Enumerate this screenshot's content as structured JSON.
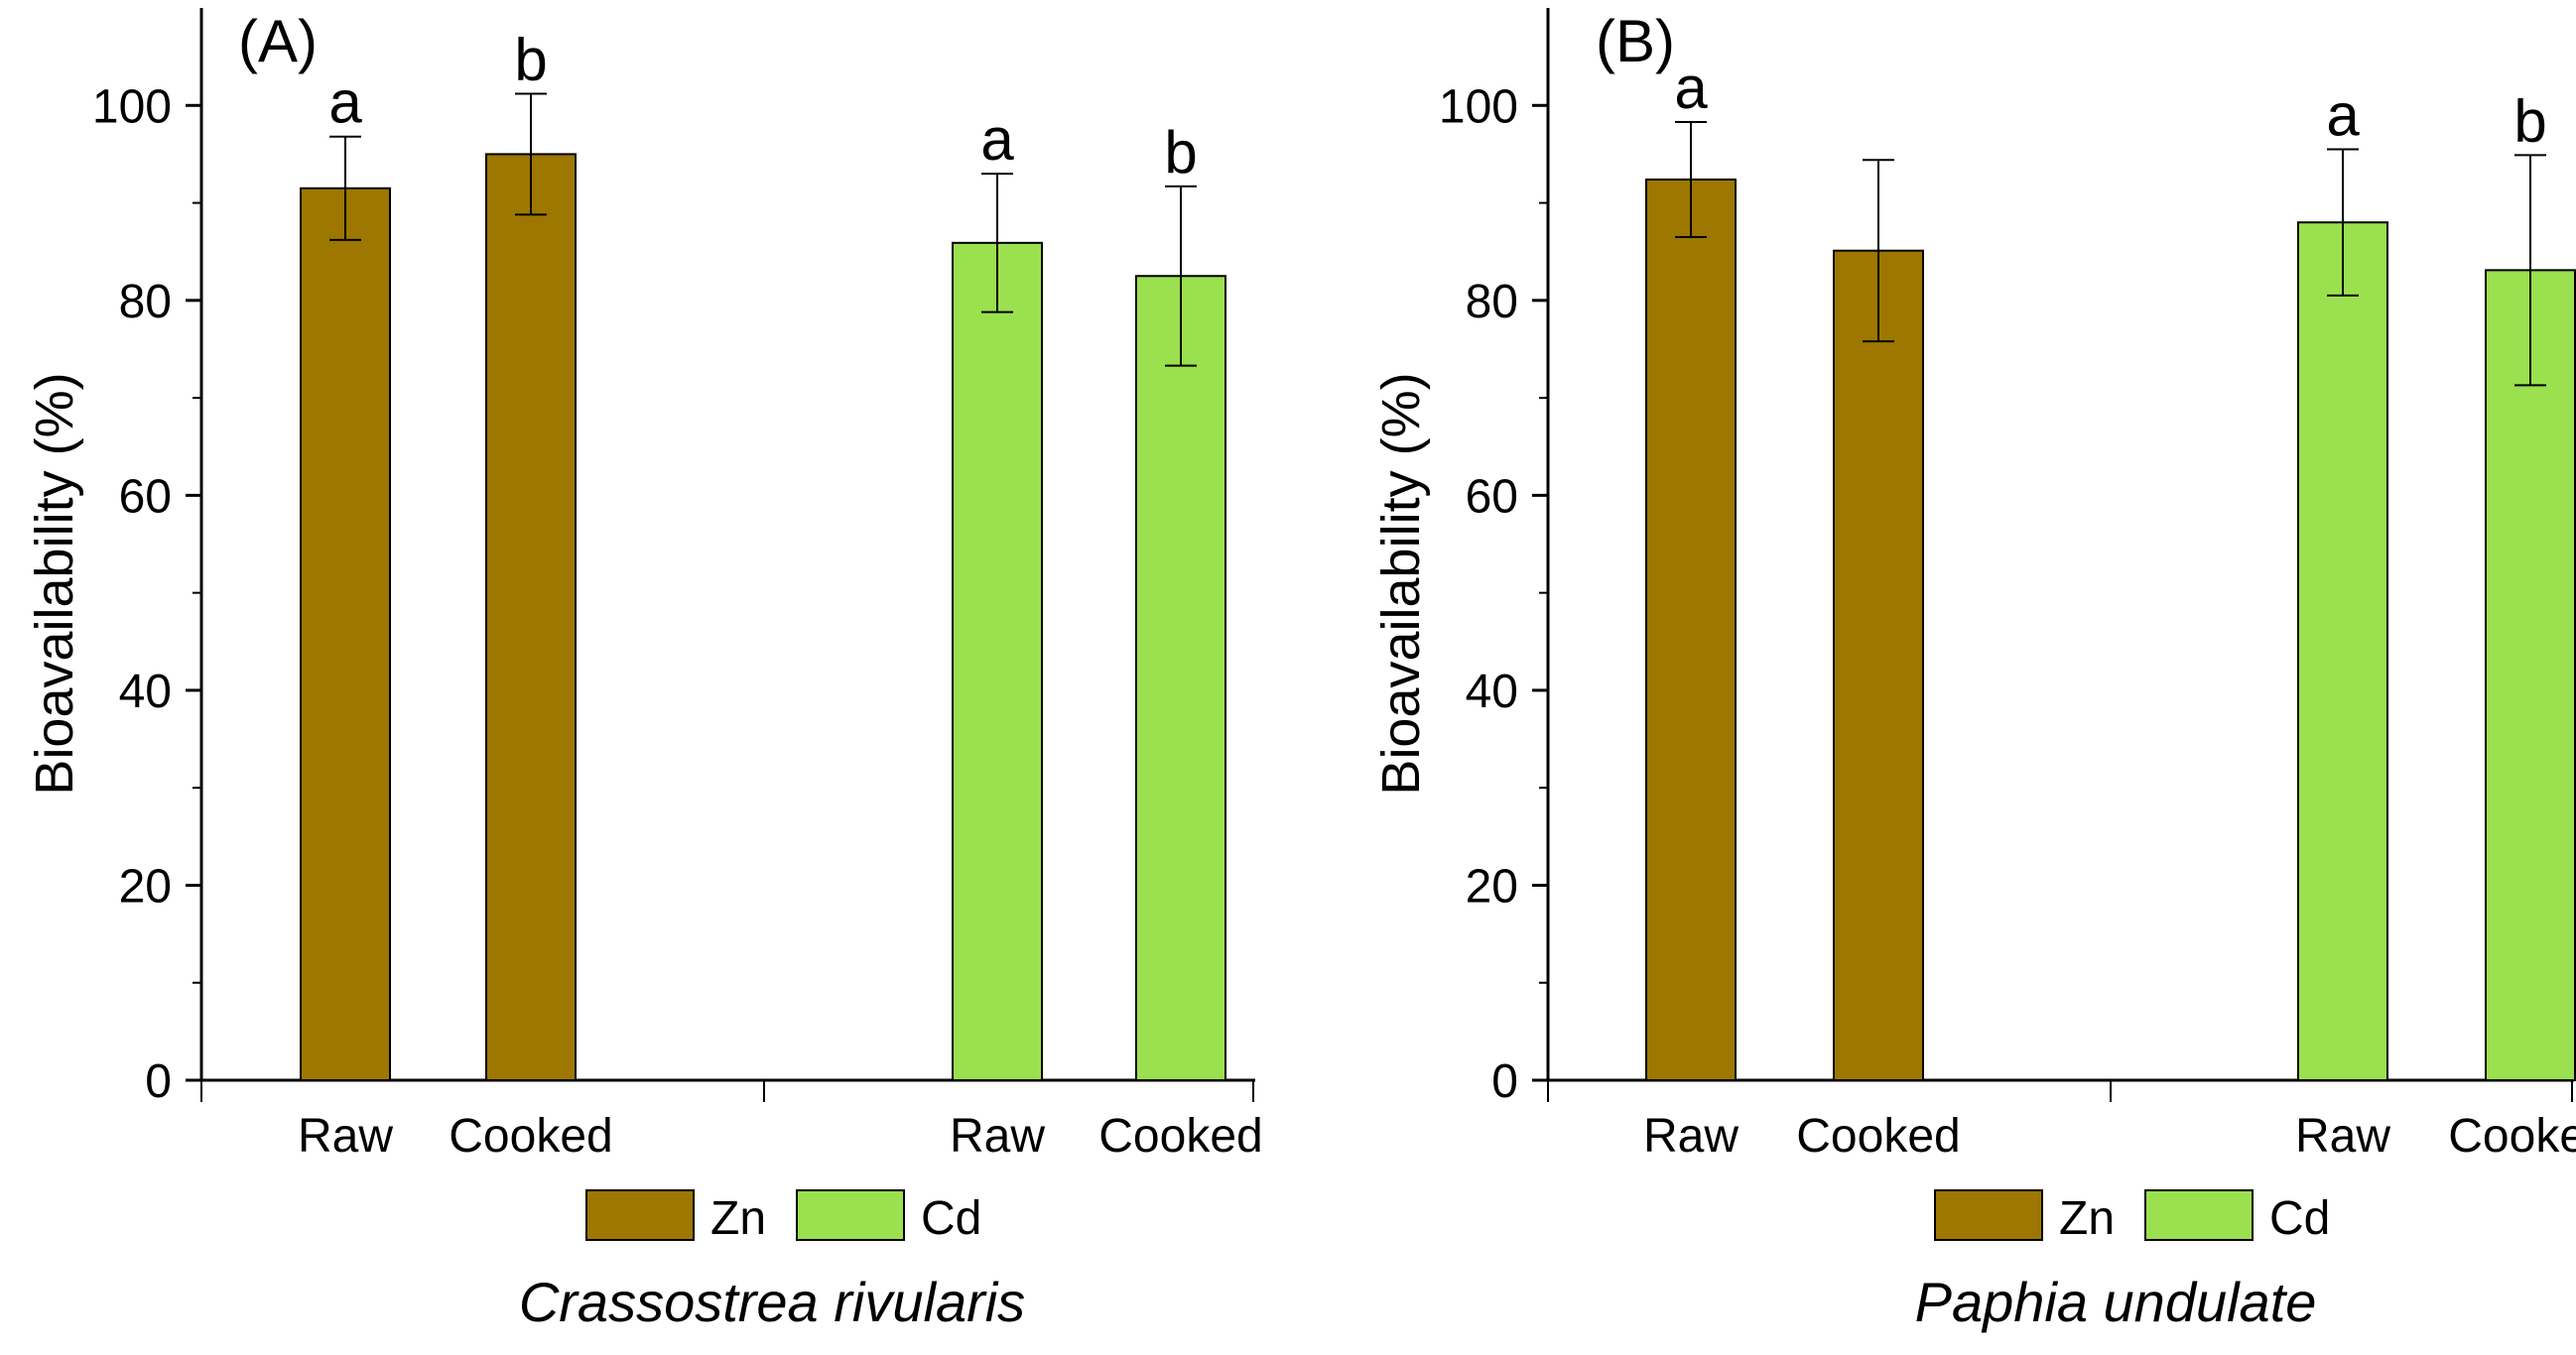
{
  "chart_data": [
    {
      "type": "bar",
      "panel_label": "(A)",
      "species": "Crassostrea rivularis",
      "ylabel": "Bioavailability (%)",
      "ylim": [
        0,
        110
      ],
      "yticks": [
        0,
        20,
        40,
        60,
        80,
        100
      ],
      "categories": [
        "Raw",
        "Cooked",
        "Raw",
        "Cooked"
      ],
      "legend": [
        {
          "name": "Zn",
          "color": "#9E7700"
        },
        {
          "name": "Cd",
          "color": "#9BE04E"
        }
      ],
      "bars": [
        {
          "series": "Zn",
          "category": "Raw",
          "value": 91.5,
          "err": 5.3,
          "sig": "a"
        },
        {
          "series": "Zn",
          "category": "Cooked",
          "value": 95.0,
          "err": 6.2,
          "sig": "b"
        },
        {
          "series": "Cd",
          "category": "Raw",
          "value": 85.9,
          "err": 7.1,
          "sig": "a"
        },
        {
          "series": "Cd",
          "category": "Cooked",
          "value": 82.5,
          "err": 9.2,
          "sig": "b"
        }
      ]
    },
    {
      "type": "bar",
      "panel_label": "(B)",
      "species": "Paphia undulate",
      "ylabel": "Bioavailability (%)",
      "ylim": [
        0,
        110
      ],
      "yticks": [
        0,
        20,
        40,
        60,
        80,
        100
      ],
      "categories": [
        "Raw",
        "Cooked",
        "Raw",
        "Cooked"
      ],
      "legend": [
        {
          "name": "Zn",
          "color": "#9E7700"
        },
        {
          "name": "Cd",
          "color": "#9BE04E"
        }
      ],
      "bars": [
        {
          "series": "Zn",
          "category": "Raw",
          "value": 92.4,
          "err": 5.9,
          "sig": "a"
        },
        {
          "series": "Zn",
          "category": "Cooked",
          "value": 85.1,
          "err": 9.3,
          "sig": ""
        },
        {
          "series": "Cd",
          "category": "Raw",
          "value": 88.0,
          "err": 7.5,
          "sig": "a"
        },
        {
          "series": "Cd",
          "category": "Cooked",
          "value": 83.1,
          "err": 11.8,
          "sig": "b"
        }
      ]
    }
  ]
}
